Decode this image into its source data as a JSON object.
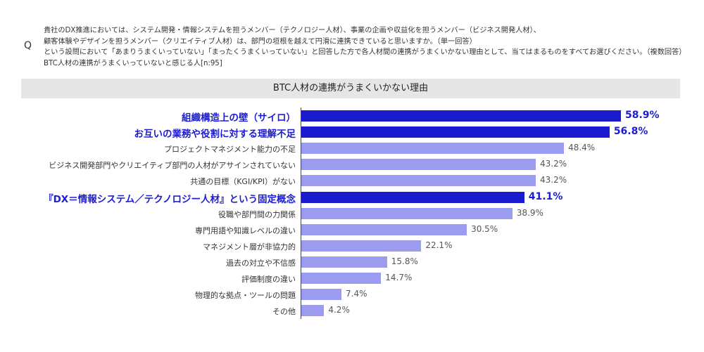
{
  "question": {
    "mark": "Q",
    "lines": [
      "貴社のDX推進においては、システム開発・情報システムを担うメンバー（テクノロジー人材）、事業の企画や収益化を担うメンバー（ビジネス開発人材）、",
      "顧客体験やデザインを担うメンバー（クリエイティブ人材）は、部門の垣根を越えて円滑に連携できていると思いますか。（単一回答）",
      "という設問において「あまりうまくいっていない」「まったくうまくいっていない」と回答した方で各人材間の連携がうまくいかない理由として、当てはまるものをすべてお選びください。（複数回答）",
      "BTC人材の連携がうまくいっていないと感じる人[n:95]"
    ]
  },
  "colors": {
    "highlight": "#1a1acf",
    "normal": "#9b9bf0"
  },
  "chart_data": {
    "type": "bar",
    "orientation": "horizontal",
    "title": "BTC人材の連携がうまくいかない理由",
    "unit": "%",
    "xlim": [
      0,
      60
    ],
    "categories": [
      "組織構造上の壁（サイロ）",
      "お互いの業務や役割に対する理解不足",
      "プロジェクトマネジメント能力の不足",
      "ビジネス開発部門やクリエイティブ部門の人材がアサインされていない",
      "共通の目標（KGI/KPI）がない",
      "『DX＝情報システム／テクノロジー人材』という固定概念",
      "役職や部門間の力関係",
      "専門用語や知識レベルの違い",
      "マネジメント層が非協力的",
      "過去の対立や不信感",
      "評価制度の違い",
      "物理的な拠点・ツールの問題",
      "その他"
    ],
    "values": [
      58.9,
      56.8,
      48.4,
      43.2,
      43.2,
      41.1,
      38.9,
      30.5,
      22.1,
      15.8,
      14.7,
      7.4,
      4.2
    ],
    "value_labels": [
      "58.9%",
      "56.8%",
      "48.4%",
      "43.2%",
      "43.2%",
      "41.1%",
      "38.9%",
      "30.5%",
      "22.1%",
      "15.8%",
      "14.7%",
      "7.4%",
      "4.2%"
    ],
    "highlighted": [
      true,
      true,
      false,
      false,
      false,
      true,
      false,
      false,
      false,
      false,
      false,
      false,
      false
    ]
  }
}
